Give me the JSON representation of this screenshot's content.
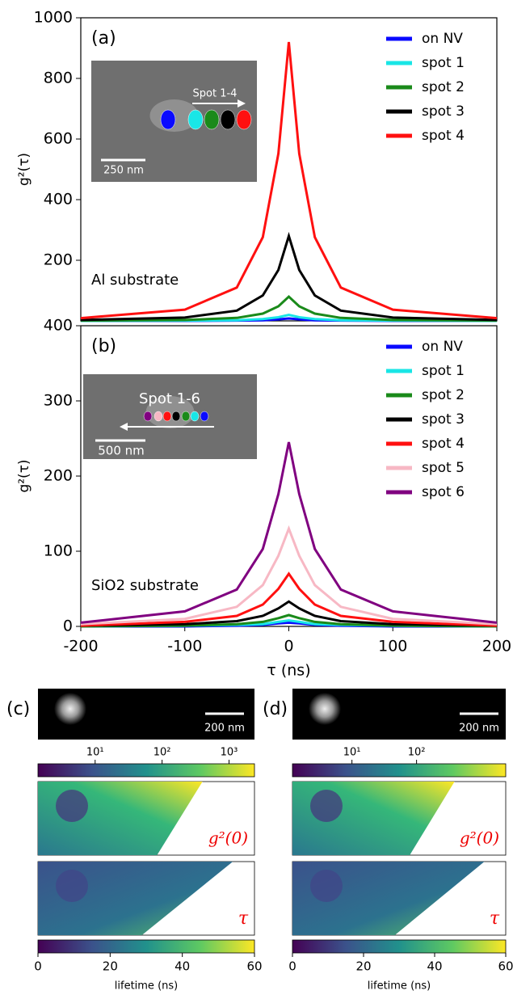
{
  "chart_data": [
    {
      "type": "line",
      "panel_label": "(a)",
      "annotation": "Al substrate",
      "ylabel": "g²(τ)",
      "inset": {
        "label": "Spot 1-4",
        "scale_bar": "250 nm"
      },
      "x": [
        -200,
        -100,
        -50,
        -25,
        -10,
        0,
        10,
        25,
        50,
        100,
        200
      ],
      "xlim": [
        -200,
        200
      ],
      "ylim": [
        0,
        1000
      ],
      "yticks": [
        200,
        400,
        600,
        800,
        1000
      ],
      "legend": "upper right",
      "series": [
        {
          "name": "on NV",
          "color": "#0a0aff",
          "values": [
            0,
            0,
            1,
            2,
            5,
            8,
            5,
            2,
            1,
            0,
            0
          ]
        },
        {
          "name": "spot 1",
          "color": "#19e6e6",
          "values": [
            0,
            1,
            2,
            6,
            12,
            20,
            12,
            6,
            2,
            1,
            0
          ]
        },
        {
          "name": "spot 2",
          "color": "#1a8a1a",
          "values": [
            1,
            3,
            10,
            24,
            48,
            80,
            48,
            24,
            10,
            3,
            1
          ]
        },
        {
          "name": "spot 3",
          "color": "#000000",
          "values": [
            3,
            11,
            34,
            84,
            168,
            280,
            168,
            84,
            34,
            11,
            3
          ]
        },
        {
          "name": "spot 4",
          "color": "#ff1010",
          "values": [
            9,
            37,
            110,
            276,
            552,
            920,
            552,
            276,
            110,
            37,
            9
          ]
        }
      ]
    },
    {
      "type": "line",
      "panel_label": "(b)",
      "annotation": "SiO2 substrate",
      "ylabel": "g²(τ)",
      "xlabel": "τ (ns)",
      "inset": {
        "label": "Spot 1-6",
        "scale_bar": "500 nm"
      },
      "x": [
        -200,
        -100,
        -50,
        -25,
        -10,
        0,
        10,
        25,
        50,
        100,
        200
      ],
      "xlim": [
        -200,
        200
      ],
      "xticks": [
        -200,
        -100,
        0,
        100,
        200
      ],
      "ylim": [
        0,
        400
      ],
      "yticks": [
        0,
        100,
        200,
        300,
        400
      ],
      "legend": "upper right",
      "series": [
        {
          "name": "on NV",
          "color": "#0a0aff",
          "values": [
            0,
            0,
            1,
            2,
            4,
            5,
            4,
            2,
            1,
            0,
            0
          ]
        },
        {
          "name": "spot 1",
          "color": "#19e6e6",
          "values": [
            0,
            1,
            2,
            3,
            6,
            8,
            6,
            3,
            2,
            1,
            0
          ]
        },
        {
          "name": "spot 2",
          "color": "#1a8a1a",
          "values": [
            0,
            1,
            3,
            6,
            11,
            15,
            11,
            6,
            3,
            1,
            0
          ]
        },
        {
          "name": "spot 3",
          "color": "#000000",
          "values": [
            1,
            3,
            7,
            14,
            24,
            33,
            24,
            14,
            7,
            3,
            1
          ]
        },
        {
          "name": "spot 4",
          "color": "#ff1010",
          "values": [
            1,
            6,
            14,
            29,
            50,
            70,
            50,
            29,
            14,
            6,
            1
          ]
        },
        {
          "name": "spot 5",
          "color": "#f7b8c4",
          "values": [
            3,
            10,
            26,
            55,
            94,
            130,
            94,
            55,
            26,
            10,
            3
          ]
        },
        {
          "name": "spot 6",
          "color": "#800080",
          "values": [
            5,
            20,
            49,
            103,
            176,
            245,
            176,
            103,
            49,
            20,
            5
          ]
        }
      ]
    }
  ],
  "image_panels": [
    {
      "label": "(c)",
      "scale_bar": "200 nm",
      "map_label": "g²(0)",
      "lifetime_map_label": "τ",
      "log_colorbar": {
        "clim": [
          1.4,
          2400
        ],
        "ticks": [
          {
            "value": 10,
            "label": "10¹"
          },
          {
            "value": 100,
            "label": "10²"
          },
          {
            "value": 1000,
            "label": "10³"
          }
        ]
      },
      "lifetime_colorbar": {
        "label": "lifetime (ns)",
        "clim": [
          0,
          60
        ],
        "ticks": [
          0,
          20,
          40,
          60
        ]
      }
    },
    {
      "label": "(d)",
      "scale_bar": "200 nm",
      "map_label": "g²(0)",
      "lifetime_map_label": "τ",
      "log_colorbar": {
        "clim": [
          1.2,
          2400
        ],
        "ticks": [
          {
            "value": 10,
            "label": "10¹"
          },
          {
            "value": 100,
            "label": "10²"
          }
        ]
      },
      "lifetime_colorbar": {
        "label": "lifetime (ns)",
        "clim": [
          0,
          60
        ],
        "ticks": [
          0,
          20,
          40,
          60
        ]
      }
    }
  ]
}
